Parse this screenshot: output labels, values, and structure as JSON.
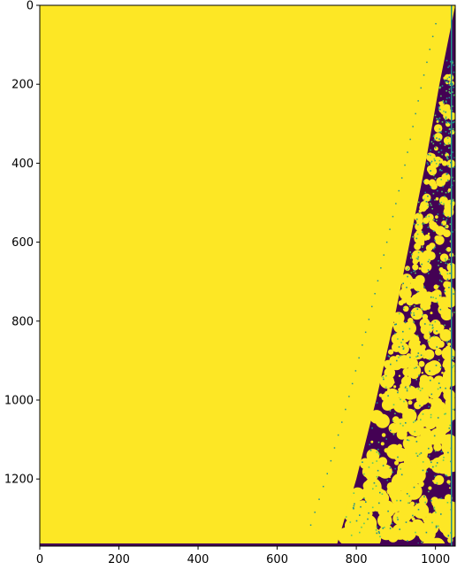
{
  "chart_data": {
    "type": "heatmap",
    "title": "",
    "xlabel": "",
    "ylabel": "",
    "xlim": [
      0,
      1050
    ],
    "ylim": [
      1370,
      0
    ],
    "xticks": [
      0,
      200,
      400,
      600,
      800,
      1000
    ],
    "yticks": [
      0,
      200,
      400,
      600,
      800,
      1000,
      1200
    ],
    "colormap": "viridis",
    "colors": {
      "high": "#fde725",
      "low": "#440154",
      "mid": "#21918c",
      "accent": "#5ec962"
    },
    "boundary": [
      {
        "y": 0,
        "x": 1050
      },
      {
        "y": 200,
        "x": 1010
      },
      {
        "y": 400,
        "x": 975
      },
      {
        "y": 600,
        "x": 935
      },
      {
        "y": 800,
        "x": 895
      },
      {
        "y": 1000,
        "x": 850
      },
      {
        "y": 1200,
        "x": 800
      },
      {
        "y": 1370,
        "x": 750
      }
    ],
    "grid": false,
    "legend": "none"
  }
}
